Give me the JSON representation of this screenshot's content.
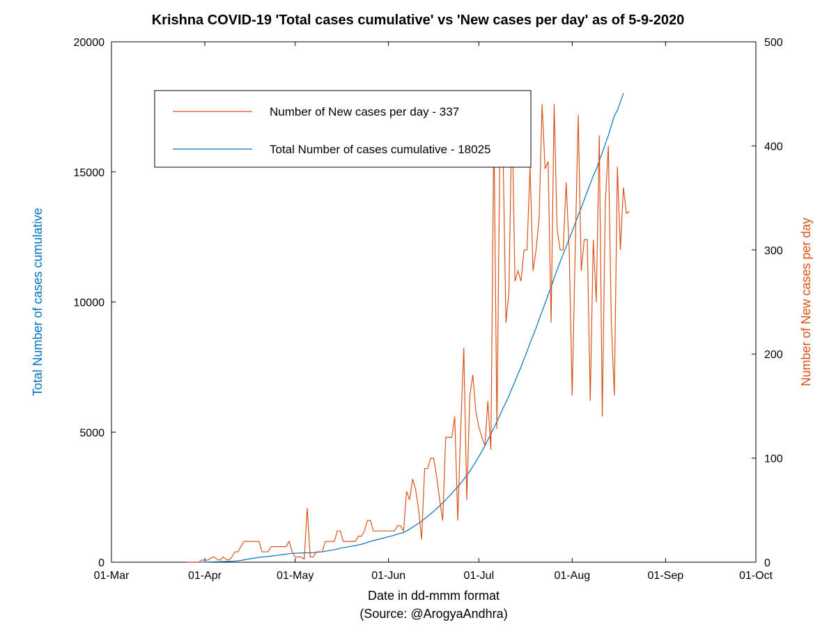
{
  "chart": {
    "type": "dual-axis-line",
    "title": "Krishna COVID-19 'Total cases cumulative' vs 'New cases per day' as of 5-9-2020",
    "title_fontsize": 20,
    "title_fontweight": "bold",
    "xlabel": "Date in dd-mmm format",
    "xlabel2": "(Source: @ArogyaAndhra)",
    "ylabel_left": "Total Number of cases cumulative",
    "ylabel_right": "Number of New cases per day",
    "label_fontsize": 18,
    "tick_fontsize": 16,
    "background_color": "#ffffff",
    "plot_background": "#ffffff",
    "axis_color": "#000000",
    "left_color": "#0072bd",
    "right_color": "#d95319",
    "line_width": 1.2,
    "x_ticks": [
      "01-Mar",
      "01-Apr",
      "01-May",
      "01-Jun",
      "01-Jul",
      "01-Aug",
      "01-Sep",
      "01-Oct"
    ],
    "x_tick_days": [
      0,
      31,
      61,
      92,
      122,
      153,
      184,
      214
    ],
    "xlim": [
      0,
      214
    ],
    "y_left_ticks": [
      0,
      5000,
      10000,
      15000,
      20000
    ],
    "y_left_lim": [
      0,
      20000
    ],
    "y_right_ticks": [
      0,
      100,
      200,
      300,
      400,
      500
    ],
    "y_right_lim": [
      0,
      500
    ],
    "legend": {
      "items": [
        "Number of New cases per day - 337",
        "Total Number of cases cumulative - 18025"
      ],
      "colors": [
        "#d95319",
        "#0072319"
      ],
      "border_color": "#000000",
      "background": "#ffffff",
      "fontsize": 17
    },
    "cumulative_series": {
      "color": "#0072bd",
      "start_day": 25,
      "data": [
        0,
        0,
        0,
        0,
        0,
        2,
        4,
        6,
        10,
        15,
        18,
        20,
        25,
        28,
        30,
        35,
        45,
        55,
        70,
        90,
        110,
        130,
        150,
        170,
        190,
        200,
        210,
        220,
        235,
        250,
        265,
        280,
        295,
        310,
        330,
        340,
        345,
        350,
        355,
        358,
        360,
        365,
        370,
        380,
        390,
        400,
        420,
        440,
        460,
        480,
        510,
        540,
        560,
        580,
        600,
        620,
        640,
        665,
        690,
        720,
        760,
        800,
        830,
        860,
        890,
        920,
        950,
        980,
        1010,
        1040,
        1075,
        1110,
        1140,
        1200,
        1270,
        1350,
        1420,
        1500,
        1580,
        1670,
        1760,
        1860,
        1960,
        2060,
        2170,
        2280,
        2400,
        2520,
        2640,
        2780,
        2900,
        3030,
        3190,
        3340,
        3500,
        3680,
        3860,
        4060,
        4260,
        4470,
        4700,
        4930,
        5160,
        5400,
        5650,
        5910,
        6140,
        6400,
        6680,
        6950,
        7230,
        7500,
        7800,
        8100,
        8420,
        8700,
        9000,
        9330,
        9640,
        9950,
        10270,
        10580,
        10920,
        11240,
        11540,
        11840,
        12130,
        12430,
        12720,
        13020,
        13340,
        13620,
        13930,
        14240,
        14540,
        14850,
        15100,
        15430,
        15740,
        16080,
        16400,
        16780,
        17160,
        17360,
        17690,
        18025
      ]
    },
    "new_cases_series": {
      "color": "#d95319",
      "start_day": 25,
      "data": [
        0,
        0,
        0,
        0,
        0,
        2,
        2,
        2,
        4,
        5,
        3,
        2,
        5,
        3,
        2,
        5,
        10,
        10,
        15,
        20,
        20,
        20,
        20,
        20,
        20,
        10,
        10,
        10,
        15,
        15,
        15,
        15,
        15,
        15,
        20,
        10,
        5,
        5,
        5,
        3,
        52,
        5,
        5,
        10,
        10,
        10,
        20,
        20,
        20,
        20,
        30,
        30,
        20,
        20,
        20,
        20,
        20,
        25,
        25,
        30,
        40,
        40,
        30,
        30,
        30,
        30,
        30,
        30,
        30,
        30,
        35,
        35,
        30,
        68,
        60,
        80,
        70,
        50,
        22,
        90,
        90,
        100,
        100,
        82,
        60,
        40,
        120,
        120,
        120,
        140,
        40,
        130,
        206,
        60,
        160,
        180,
        145,
        130,
        120,
        112,
        155,
        108,
        420,
        128,
        400,
        400,
        230,
        260,
        435,
        270,
        280,
        270,
        300,
        300,
        380,
        280,
        300,
        330,
        440,
        378,
        385,
        230,
        440,
        320,
        300,
        300,
        365,
        300,
        160,
        300,
        430,
        280,
        310,
        310,
        155,
        310,
        250,
        410,
        140,
        345,
        400,
        230,
        160,
        380,
        300,
        360,
        335,
        337
      ]
    }
  }
}
